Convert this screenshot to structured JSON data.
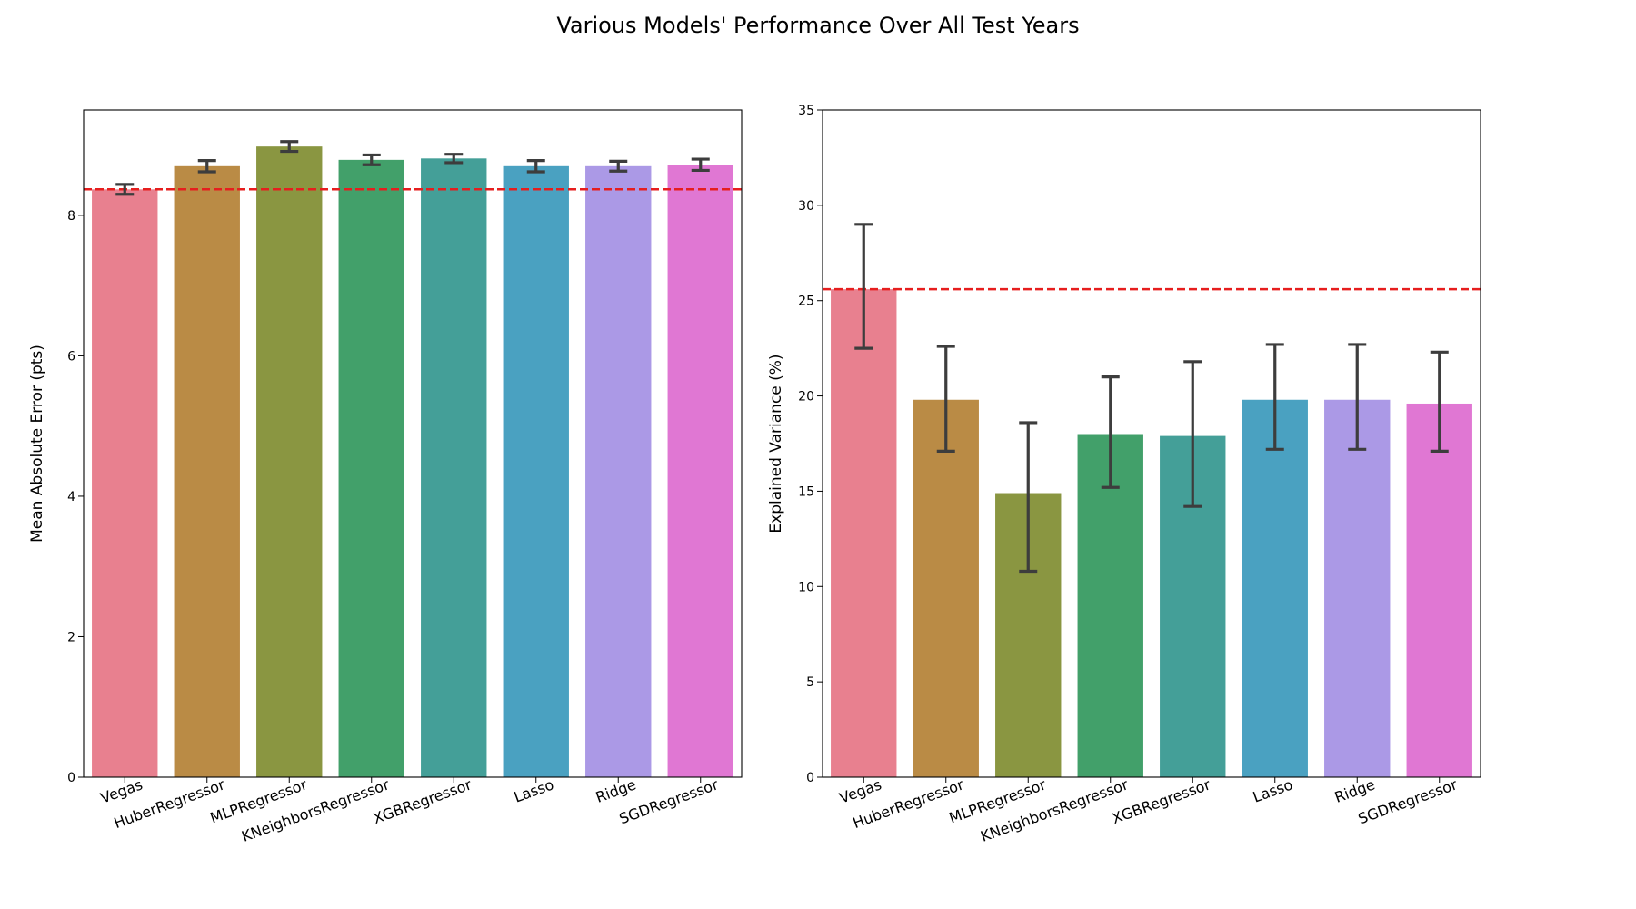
{
  "suptitle": "Various Models' Performance Over All Test Years",
  "colors": [
    "#e8808f",
    "#ba8b45",
    "#8a9641",
    "#42a06a",
    "#449f98",
    "#4aa1c1",
    "#ab99e6",
    "#e077d3"
  ],
  "reference_line_color": "#e61e1e",
  "errorbar_color": "#3d3d3d",
  "chart_data": [
    {
      "type": "bar",
      "title": "",
      "xlabel": "",
      "ylabel": "Mean Absolute Error (pts)",
      "categories": [
        "Vegas",
        "HuberRegressor",
        "MLPRegressor",
        "KNeighborsRegressor",
        "XGBRegressor",
        "Lasso",
        "Ridge",
        "SGDRegressor"
      ],
      "values": [
        8.37,
        8.7,
        8.98,
        8.79,
        8.81,
        8.7,
        8.7,
        8.72
      ],
      "error_low": [
        8.3,
        8.62,
        8.91,
        8.72,
        8.75,
        8.62,
        8.63,
        8.64
      ],
      "error_high": [
        8.44,
        8.78,
        9.05,
        8.86,
        8.87,
        8.78,
        8.77,
        8.8
      ],
      "reference_line": 8.37,
      "ylim": [
        0,
        9.5
      ],
      "yticks": [
        0,
        2,
        4,
        6,
        8
      ]
    },
    {
      "type": "bar",
      "title": "",
      "xlabel": "",
      "ylabel": "Explained Variance (%)",
      "categories": [
        "Vegas",
        "HuberRegressor",
        "MLPRegressor",
        "KNeighborsRegressor",
        "XGBRegressor",
        "Lasso",
        "Ridge",
        "SGDRegressor"
      ],
      "values": [
        25.6,
        19.8,
        14.9,
        18.0,
        17.9,
        19.8,
        19.8,
        19.6
      ],
      "error_low": [
        22.5,
        17.1,
        10.8,
        15.2,
        14.2,
        17.2,
        17.2,
        17.1
      ],
      "error_high": [
        29.0,
        22.6,
        18.6,
        21.0,
        21.8,
        22.7,
        22.7,
        22.3
      ],
      "reference_line": 25.6,
      "ylim": [
        0,
        35
      ],
      "yticks": [
        0,
        5,
        10,
        15,
        20,
        25,
        30,
        35
      ]
    }
  ]
}
